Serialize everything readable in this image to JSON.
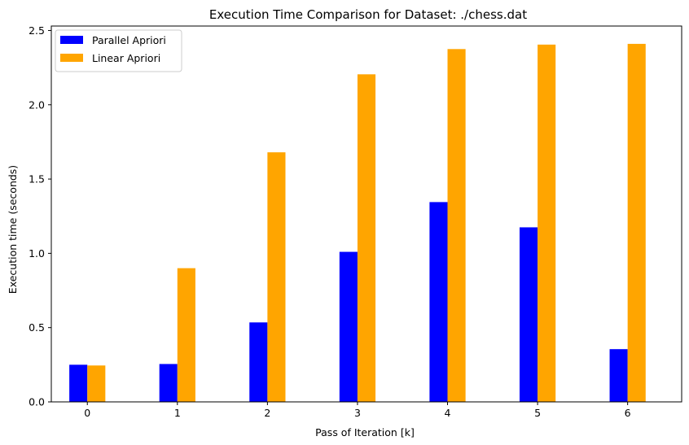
{
  "chart_data": {
    "type": "bar",
    "title": "Execution Time Comparison for Dataset: ./chess.dat",
    "xlabel": "Pass of Iteration [k]",
    "ylabel": "Execution time (seconds)",
    "categories": [
      "0",
      "1",
      "2",
      "3",
      "4",
      "5",
      "6"
    ],
    "series": [
      {
        "name": "Parallel Apriori",
        "color": "#0000ff",
        "values": [
          0.25,
          0.255,
          0.535,
          1.01,
          1.345,
          1.175,
          0.355
        ]
      },
      {
        "name": "Linear Apriori",
        "color": "#ffa500",
        "values": [
          0.245,
          0.9,
          1.68,
          2.205,
          2.375,
          2.405,
          2.41
        ]
      }
    ],
    "ylim": [
      0,
      2.53
    ],
    "yticks": [
      "0.0",
      "0.5",
      "1.0",
      "1.5",
      "2.0",
      "2.5"
    ],
    "legend_position": "top-left",
    "grid": false
  }
}
